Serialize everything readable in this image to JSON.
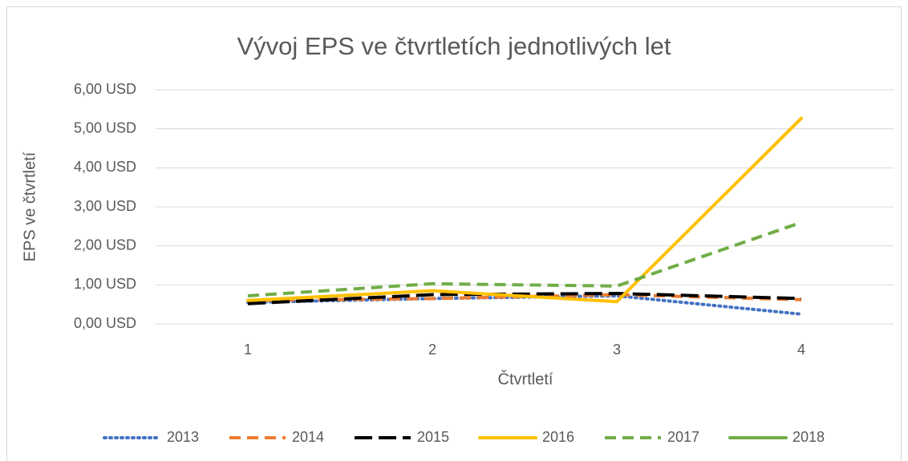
{
  "chart_data": {
    "type": "line",
    "title": "Vývoj EPS ve čtvrtletích jednotlivých let",
    "x_label": "Čtvrtletí",
    "y_label": "EPS ve čtvrtletí",
    "categories": [
      "1",
      "2",
      "3",
      "4"
    ],
    "series": [
      {
        "name": "2013",
        "color": "#4472c4",
        "dash": "dot",
        "values": [
          0.55,
          0.65,
          0.72,
          0.25
        ]
      },
      {
        "name": "2014",
        "color": "#ed7d31",
        "dash": "dash",
        "values": [
          0.6,
          0.65,
          0.75,
          0.62
        ]
      },
      {
        "name": "2015",
        "color": "#000000",
        "dash": "longdash",
        "values": [
          0.52,
          0.75,
          0.78,
          0.65
        ]
      },
      {
        "name": "2016",
        "color": "#ffc000",
        "dash": "solid",
        "values": [
          0.6,
          0.85,
          0.57,
          5.27
        ]
      },
      {
        "name": "2017",
        "color": "#70ad47",
        "dash": "dash",
        "values": [
          0.72,
          1.03,
          0.97,
          2.6
        ]
      },
      {
        "name": "2018",
        "color": "#70ad47",
        "dash": "solid",
        "values": [
          null,
          null,
          null,
          null
        ]
      }
    ],
    "ylim": [
      0,
      6
    ],
    "yticks": [
      {
        "value": 0,
        "label": "0,00 USD"
      },
      {
        "value": 1,
        "label": "1,00 USD"
      },
      {
        "value": 2,
        "label": "2,00 USD"
      },
      {
        "value": 3,
        "label": "3,00 USD"
      },
      {
        "value": 4,
        "label": "4,00 USD"
      },
      {
        "value": 5,
        "label": "5,00 USD"
      },
      {
        "value": 6,
        "label": "6,00 USD"
      }
    ],
    "grid": true,
    "legend": "bottom"
  }
}
